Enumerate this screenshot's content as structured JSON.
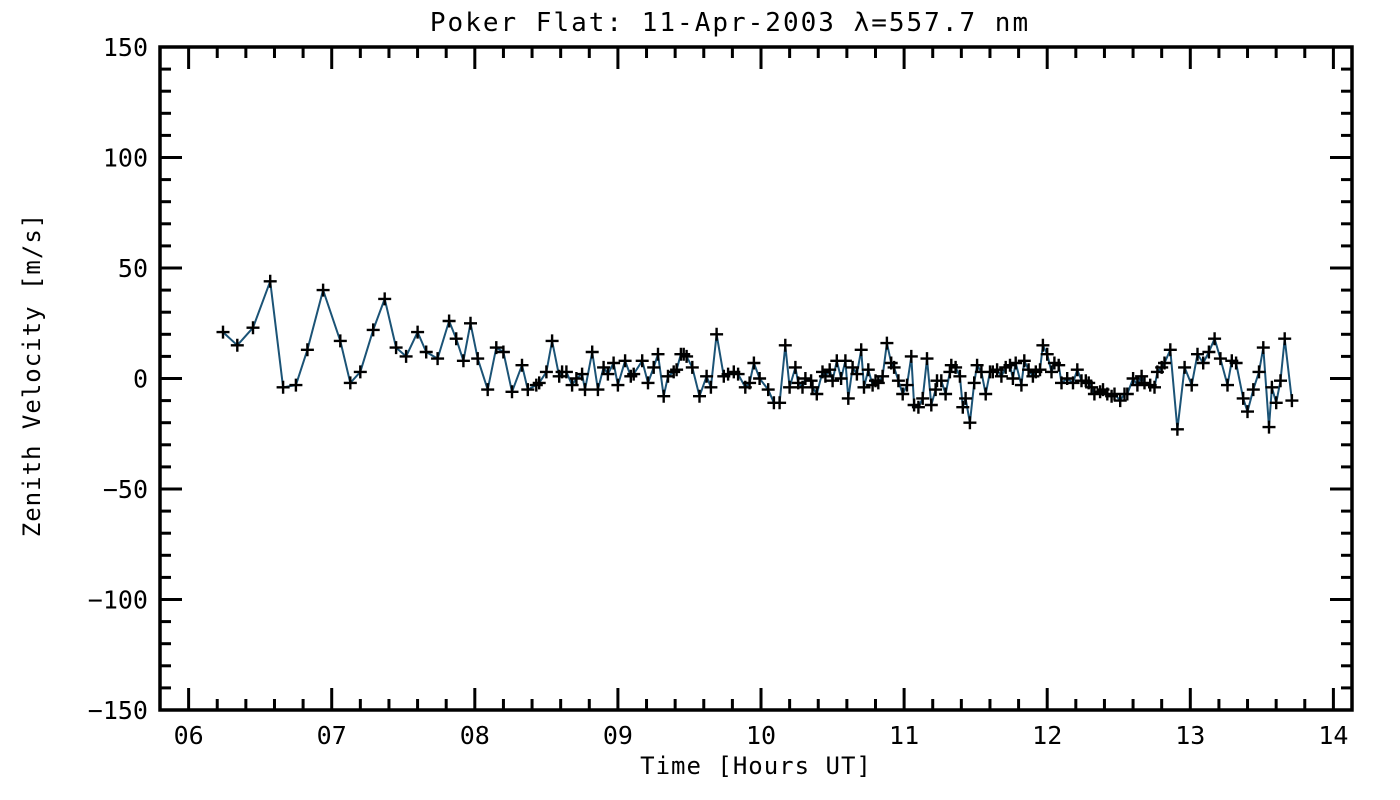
{
  "title": "Poker Flat: 11-Apr-2003 λ=557.7 nm",
  "chart_data": {
    "type": "line",
    "title": "Poker Flat: 11-Apr-2003 λ=557.7 nm",
    "xlabel": "Time [Hours UT]",
    "ylabel": "Zenith Velocity [m/s]",
    "xlim": [
      5.8,
      14.13
    ],
    "ylim": [
      -150,
      150
    ],
    "x_major_ticks": [
      6,
      7,
      8,
      9,
      10,
      11,
      12,
      13,
      14
    ],
    "x_tick_labels": [
      "06",
      "07",
      "08",
      "09",
      "10",
      "11",
      "12",
      "13",
      "14"
    ],
    "x_minor_step": 0.2,
    "y_major_ticks": [
      -150,
      -100,
      -50,
      0,
      50,
      100,
      150
    ],
    "y_tick_labels": [
      "−150",
      "−100",
      "−50",
      "0",
      "50",
      "100",
      "150"
    ],
    "y_minor_step": 10,
    "grid": false,
    "legend": "none",
    "marker": "plus",
    "line_color": "#1b5376",
    "marker_color": "#000000",
    "axis_color": "#000000",
    "background_color": "#ffffff",
    "series": [
      {
        "name": "zenith_velocity",
        "x": [
          6.24,
          6.34,
          6.45,
          6.57,
          6.66,
          6.75,
          6.83,
          6.94,
          7.06,
          7.13,
          7.2,
          7.29,
          7.37,
          7.45,
          7.52,
          7.6,
          7.66,
          7.74,
          7.82,
          7.87,
          7.92,
          7.97,
          8.02,
          8.09,
          8.15,
          8.2,
          8.26,
          8.33,
          8.37,
          8.43,
          8.45,
          8.5,
          8.54,
          8.59,
          8.61,
          8.64,
          8.68,
          8.71,
          8.75,
          8.77,
          8.82,
          8.86,
          8.9,
          8.93,
          8.97,
          9.0,
          9.05,
          9.09,
          9.11,
          9.17,
          9.21,
          9.25,
          9.28,
          9.32,
          9.35,
          9.39,
          9.41,
          9.44,
          9.46,
          9.48,
          9.52,
          9.57,
          9.62,
          9.65,
          9.69,
          9.74,
          9.77,
          9.81,
          9.84,
          9.89,
          9.92,
          9.95,
          9.99,
          10.05,
          10.09,
          10.13,
          10.17,
          10.2,
          10.24,
          10.26,
          10.29,
          10.31,
          10.35,
          10.36,
          10.39,
          10.43,
          10.45,
          10.48,
          10.5,
          10.53,
          10.56,
          10.59,
          10.61,
          10.64,
          10.67,
          10.7,
          10.72,
          10.75,
          10.78,
          10.8,
          10.82,
          10.85,
          10.88,
          10.91,
          10.93,
          10.96,
          10.99,
          11.02,
          11.05,
          11.07,
          11.1,
          11.13,
          11.16,
          11.19,
          11.22,
          11.23,
          11.26,
          11.29,
          11.32,
          11.33,
          11.36,
          11.39,
          11.41,
          11.43,
          11.46,
          11.49,
          11.51,
          11.54,
          11.57,
          11.6,
          11.62,
          11.65,
          11.68,
          11.71,
          11.74,
          11.76,
          11.78,
          11.82,
          11.84,
          11.87,
          11.9,
          11.92,
          11.95,
          11.97,
          12.0,
          12.03,
          12.05,
          12.08,
          12.1,
          12.14,
          12.18,
          12.21,
          12.24,
          12.27,
          12.29,
          12.31,
          12.33,
          12.37,
          12.39,
          12.42,
          12.45,
          12.47,
          12.51,
          12.54,
          12.56,
          12.6,
          12.63,
          12.66,
          12.68,
          12.72,
          12.75,
          12.77,
          12.8,
          12.82,
          12.86,
          12.91,
          12.96,
          13.01,
          13.05,
          13.09,
          13.13,
          13.17,
          13.21,
          13.26,
          13.29,
          13.32,
          13.37,
          13.4,
          13.44,
          13.48,
          13.51,
          13.55,
          13.57,
          13.6,
          13.63,
          13.66,
          13.71
        ],
        "y": [
          21,
          15,
          23,
          44,
          -4,
          -3,
          13,
          40,
          17,
          -2,
          3,
          22,
          36,
          14,
          10,
          21,
          12,
          9,
          26,
          18,
          8,
          25,
          9,
          -5,
          14,
          12,
          -6,
          6,
          -5,
          -3,
          -2,
          3,
          17,
          1,
          3,
          3,
          -3,
          0,
          2,
          -5,
          12,
          -5,
          5,
          2,
          7,
          -3,
          8,
          1,
          2,
          8,
          -2,
          5,
          11,
          -8,
          1,
          3,
          4,
          11,
          11,
          10,
          5,
          -8,
          1,
          -4,
          20,
          1,
          2,
          3,
          2,
          -4,
          -2,
          7,
          0,
          -5,
          -11,
          -11,
          15,
          -4,
          5,
          -2,
          -4,
          0,
          -1,
          -4,
          -7,
          3,
          1,
          4,
          -1,
          8,
          0,
          8,
          -9,
          5,
          2,
          13,
          -4,
          4,
          -3,
          -1,
          -2,
          1,
          16,
          7,
          5,
          -1,
          -7,
          -3,
          10,
          -12,
          -13,
          -9,
          9,
          -12,
          -5,
          -1,
          -1,
          -7,
          3,
          6,
          5,
          1,
          -13,
          -9,
          -20,
          -2,
          6,
          3,
          -7,
          3,
          3,
          4,
          1,
          5,
          6,
          0,
          7,
          -3,
          8,
          4,
          1,
          3,
          4,
          15,
          11,
          3,
          7,
          6,
          -2,
          0,
          -2,
          4,
          -1,
          -1,
          -2,
          -4,
          -7,
          -6,
          -5,
          -7,
          -8,
          -7,
          -10,
          -7,
          -7,
          0,
          -3,
          1,
          -2,
          -3,
          -4,
          3,
          5,
          7,
          13,
          -23,
          5,
          -3,
          11,
          7,
          12,
          18,
          9,
          -3,
          8,
          7,
          -9,
          -15,
          -5,
          3,
          14,
          -22,
          -4,
          -11,
          -1,
          18,
          -10
        ]
      }
    ]
  }
}
